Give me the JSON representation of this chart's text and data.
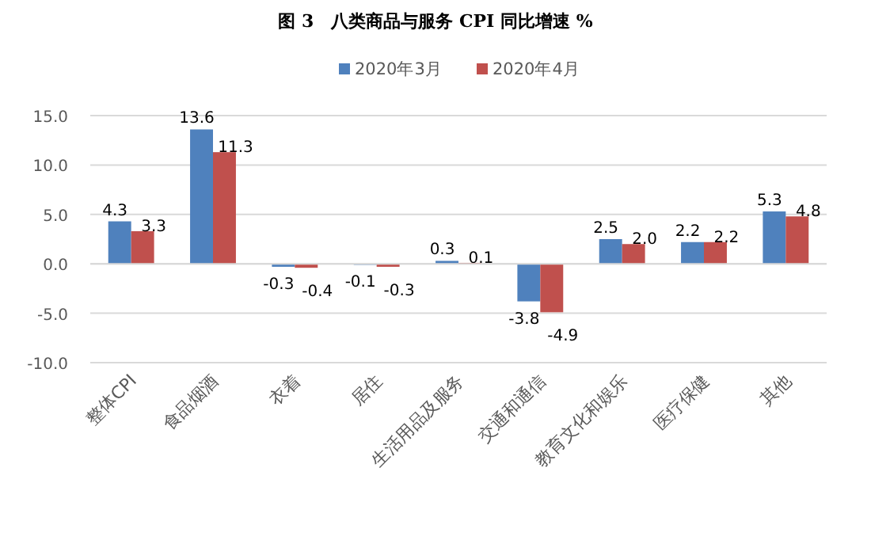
{
  "chart_data": {
    "type": "bar",
    "title": "图 3　八类商品与服务 CPI 同比增速 %",
    "categories": [
      "整体CPI",
      "食品烟酒",
      "衣着",
      "居住",
      "生活用品及服务",
      "交通和通信",
      "教育文化和娱乐",
      "医疗保健",
      "其他"
    ],
    "series": [
      {
        "name": "2020年3月",
        "color": "#4f81bd",
        "values": [
          4.3,
          13.6,
          -0.3,
          -0.1,
          0.3,
          -3.8,
          2.5,
          2.2,
          5.3
        ],
        "value_labels": [
          "4.3",
          "13.6",
          "-0.3",
          "-0.1",
          "0.3",
          "-3.8",
          "2.5",
          "2.2",
          "5.3"
        ]
      },
      {
        "name": "2020年4月",
        "color": "#c0504d",
        "values": [
          3.3,
          11.3,
          -0.4,
          -0.3,
          0.1,
          -4.9,
          2.0,
          2.2,
          4.8
        ],
        "value_labels": [
          "3.3",
          "11.3",
          "-0.4",
          "-0.3",
          "0.1",
          "-4.9",
          "2.0",
          "2.2",
          "4.8"
        ]
      }
    ],
    "ylim": [
      -10,
      15
    ],
    "yticks": [
      {
        "value": -10,
        "label": "-10.0"
      },
      {
        "value": -5,
        "label": "-5.0"
      },
      {
        "value": 0,
        "label": "0.0"
      },
      {
        "value": 5,
        "label": "5.0"
      },
      {
        "value": 10,
        "label": "10.0"
      },
      {
        "value": 15,
        "label": "15.0"
      }
    ],
    "grid": "y",
    "legend": "top"
  }
}
